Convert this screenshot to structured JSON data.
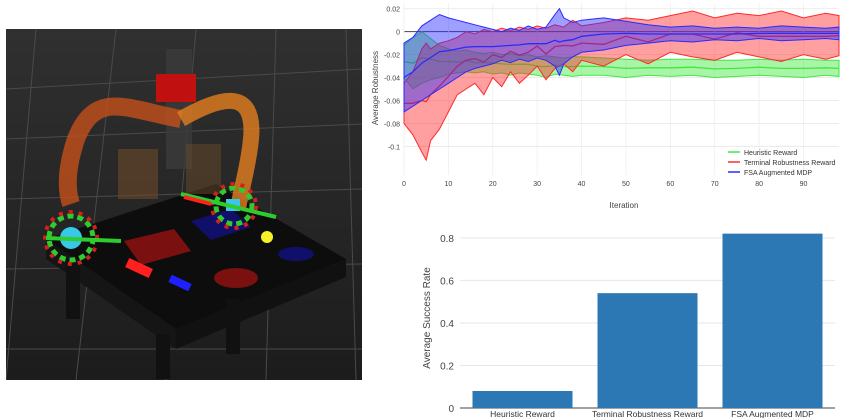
{
  "colors": {
    "heuristic": "#3fe83f",
    "terminal": "#ff2a2a",
    "fsa": "#2a2aff",
    "bar": "#2b78b4",
    "scene_bg": "#262626"
  },
  "chart_data": [
    {
      "type": "area",
      "xlabel": "Iteration",
      "ylabel": "Average Robustness",
      "xlim": [
        0,
        98
      ],
      "ylim": [
        -0.125,
        0.025
      ],
      "xticks": [
        0,
        10,
        20,
        30,
        40,
        50,
        60,
        70,
        80,
        90
      ],
      "yticks": [
        0.02,
        0,
        -0.02,
        -0.04,
        -0.06,
        -0.08,
        -0.1
      ],
      "ytick_labels": [
        "0.02",
        "0",
        "-0.02",
        "-0.04",
        "-0.06",
        "-0.08",
        "-0.1"
      ],
      "legend_placement": "bottom-right",
      "series": [
        {
          "name": "Heuristic Reward",
          "color_key": "heuristic",
          "x": [
            0,
            2,
            4,
            6,
            8,
            10,
            12,
            14,
            16,
            18,
            20,
            22,
            24,
            26,
            28,
            30,
            32,
            34,
            36,
            38,
            40,
            45,
            50,
            55,
            60,
            65,
            70,
            75,
            80,
            85,
            90,
            95,
            98
          ],
          "upper": [
            -0.012,
            -0.005,
            0.0,
            -0.006,
            -0.012,
            -0.015,
            -0.017,
            -0.016,
            -0.018,
            -0.019,
            -0.018,
            -0.02,
            -0.019,
            -0.021,
            -0.02,
            -0.022,
            -0.021,
            -0.022,
            -0.023,
            -0.022,
            -0.022,
            -0.023,
            -0.024,
            -0.025,
            -0.024,
            -0.024,
            -0.025,
            -0.025,
            -0.024,
            -0.025,
            -0.024,
            -0.025,
            -0.025
          ],
          "lower": [
            -0.04,
            -0.05,
            -0.045,
            -0.042,
            -0.04,
            -0.037,
            -0.036,
            -0.035,
            -0.036,
            -0.035,
            -0.037,
            -0.036,
            -0.038,
            -0.036,
            -0.037,
            -0.038,
            -0.04,
            -0.037,
            -0.038,
            -0.039,
            -0.038,
            -0.038,
            -0.04,
            -0.038,
            -0.039,
            -0.038,
            -0.04,
            -0.039,
            -0.038,
            -0.039,
            -0.04,
            -0.038,
            -0.039
          ]
        },
        {
          "name": "Terminal Robustness Reward",
          "color_key": "terminal",
          "x": [
            0,
            2,
            4,
            5,
            6,
            8,
            10,
            12,
            14,
            16,
            18,
            20,
            22,
            24,
            26,
            28,
            30,
            32,
            34,
            36,
            38,
            40,
            45,
            50,
            55,
            60,
            65,
            70,
            75,
            80,
            85,
            90,
            95,
            98
          ],
          "upper": [
            -0.045,
            -0.035,
            -0.015,
            -0.01,
            -0.015,
            -0.01,
            -0.008,
            -0.005,
            0.0,
            -0.002,
            0.002,
            0.0,
            0.003,
            0.001,
            0.004,
            0.002,
            0.005,
            0.003,
            0.006,
            0.004,
            0.01,
            0.005,
            0.008,
            0.012,
            0.01,
            0.014,
            0.018,
            0.012,
            0.016,
            0.014,
            0.018,
            0.012,
            0.016,
            0.014
          ],
          "lower": [
            -0.08,
            -0.09,
            -0.105,
            -0.112,
            -0.095,
            -0.085,
            -0.07,
            -0.055,
            -0.05,
            -0.045,
            -0.055,
            -0.04,
            -0.048,
            -0.035,
            -0.045,
            -0.038,
            -0.03,
            -0.042,
            -0.032,
            -0.028,
            -0.035,
            -0.025,
            -0.03,
            -0.02,
            -0.028,
            -0.018,
            -0.022,
            -0.025,
            -0.018,
            -0.022,
            -0.026,
            -0.02,
            -0.024,
            -0.021
          ]
        },
        {
          "name": "FSA Augmented MDP",
          "color_key": "fsa",
          "x": [
            0,
            2,
            4,
            6,
            8,
            10,
            12,
            14,
            16,
            18,
            20,
            22,
            24,
            26,
            28,
            30,
            32,
            34,
            35,
            36,
            38,
            40,
            45,
            50,
            55,
            60,
            65,
            70,
            75,
            80,
            85,
            90,
            95,
            98
          ],
          "upper": [
            -0.01,
            -0.005,
            0.005,
            0.01,
            0.015,
            0.012,
            0.01,
            0.008,
            0.006,
            0.004,
            0.002,
            0.0,
            0.003,
            0.001,
            0.005,
            0.002,
            0.004,
            0.015,
            0.02,
            0.012,
            0.008,
            0.01,
            0.012,
            0.009,
            0.006,
            0.004,
            0.005,
            0.003,
            0.004,
            0.003,
            0.005,
            0.004,
            0.003,
            0.004
          ],
          "lower": [
            -0.07,
            -0.065,
            -0.06,
            -0.055,
            -0.05,
            -0.045,
            -0.04,
            -0.035,
            -0.032,
            -0.03,
            -0.028,
            -0.025,
            -0.027,
            -0.024,
            -0.026,
            -0.023,
            -0.025,
            -0.03,
            -0.038,
            -0.028,
            -0.022,
            -0.018,
            -0.016,
            -0.012,
            -0.01,
            -0.008,
            -0.009,
            -0.007,
            -0.008,
            -0.006,
            -0.008,
            -0.007,
            -0.006,
            -0.007
          ]
        }
      ]
    },
    {
      "type": "bar",
      "ylabel": "Average Success Rate",
      "ylim": [
        0,
        0.87
      ],
      "yticks": [
        0,
        0.2,
        0.4,
        0.6,
        0.8
      ],
      "ytick_labels": [
        "0",
        "0.2",
        "0.4",
        "0.6",
        "0.8"
      ],
      "grid": true,
      "categories": [
        "Heuristic Reward",
        "Terminal Robustness Reward",
        "FSA Augmented MDP"
      ],
      "values": [
        0.08,
        0.54,
        0.82
      ]
    }
  ]
}
